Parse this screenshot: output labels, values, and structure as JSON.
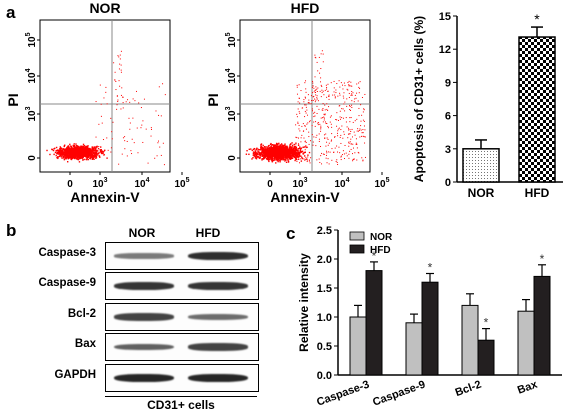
{
  "panel_labels": {
    "a": "a",
    "b": "b",
    "c": "c"
  },
  "chart_data": [
    {
      "type": "scatter",
      "title": "NOR",
      "xlabel": "Annexin-V",
      "ylabel": "PI",
      "x_ticks": [
        "0",
        "10^3",
        "10^4",
        "10^5"
      ],
      "y_ticks": [
        "0",
        "10^3",
        "10^4",
        "10^5"
      ],
      "color": "#ff0000",
      "gates": {
        "x": "10^3",
        "y": "10^3"
      }
    },
    {
      "type": "scatter",
      "title": "HFD",
      "xlabel": "Annexin-V",
      "ylabel": "PI",
      "x_ticks": [
        "0",
        "10^3",
        "10^4",
        "10^5"
      ],
      "y_ticks": [
        "0",
        "10^3",
        "10^4",
        "10^5"
      ],
      "color": "#ff0000",
      "gates": {
        "x": "10^3",
        "y": "10^3"
      }
    },
    {
      "type": "bar",
      "categories": [
        "NOR",
        "HFD"
      ],
      "values": [
        3.0,
        13.1
      ],
      "errors": [
        0.8,
        0.9
      ],
      "significance": [
        "",
        "*"
      ],
      "ylabel": "Apoptosis of CD31+ cells (%)",
      "ylim": [
        0,
        15
      ],
      "yticks": [
        0,
        3,
        6,
        9,
        12,
        15
      ],
      "patterns": [
        "dotted",
        "checkered"
      ]
    },
    {
      "type": "bar",
      "categories": [
        "Caspase-3",
        "Caspase-9",
        "Bcl-2",
        "Bax"
      ],
      "series": [
        {
          "name": "NOR",
          "color": "#c0c0c0",
          "values": [
            1.0,
            0.9,
            1.2,
            1.1
          ],
          "errors": [
            0.2,
            0.15,
            0.2,
            0.2
          ],
          "significance": [
            "",
            "",
            "",
            ""
          ]
        },
        {
          "name": "HFD",
          "color": "#231f20",
          "values": [
            1.8,
            1.6,
            0.6,
            1.7
          ],
          "errors": [
            0.15,
            0.15,
            0.2,
            0.2
          ],
          "significance": [
            "*",
            "*",
            "*",
            "*"
          ]
        }
      ],
      "ylabel": "Relative intensity",
      "ylim": [
        0,
        2.5
      ],
      "yticks": [
        "0.0",
        "0.5",
        "1.0",
        "1.5",
        "2.0",
        "2.5"
      ],
      "legend": "top-left"
    }
  ],
  "western_blot": {
    "columns": [
      "NOR",
      "HFD"
    ],
    "rows": [
      {
        "label": "Caspase-3",
        "nor": 0.35,
        "hfd": 0.9
      },
      {
        "label": "Caspase-9",
        "nor": 0.85,
        "hfd": 0.85
      },
      {
        "label": "Bcl-2",
        "nor": 0.75,
        "hfd": 0.45
      },
      {
        "label": "Bax",
        "nor": 0.55,
        "hfd": 0.75
      },
      {
        "label": "GAPDH",
        "nor": 0.95,
        "hfd": 0.95
      }
    ],
    "caption": "CD31+ cells"
  }
}
